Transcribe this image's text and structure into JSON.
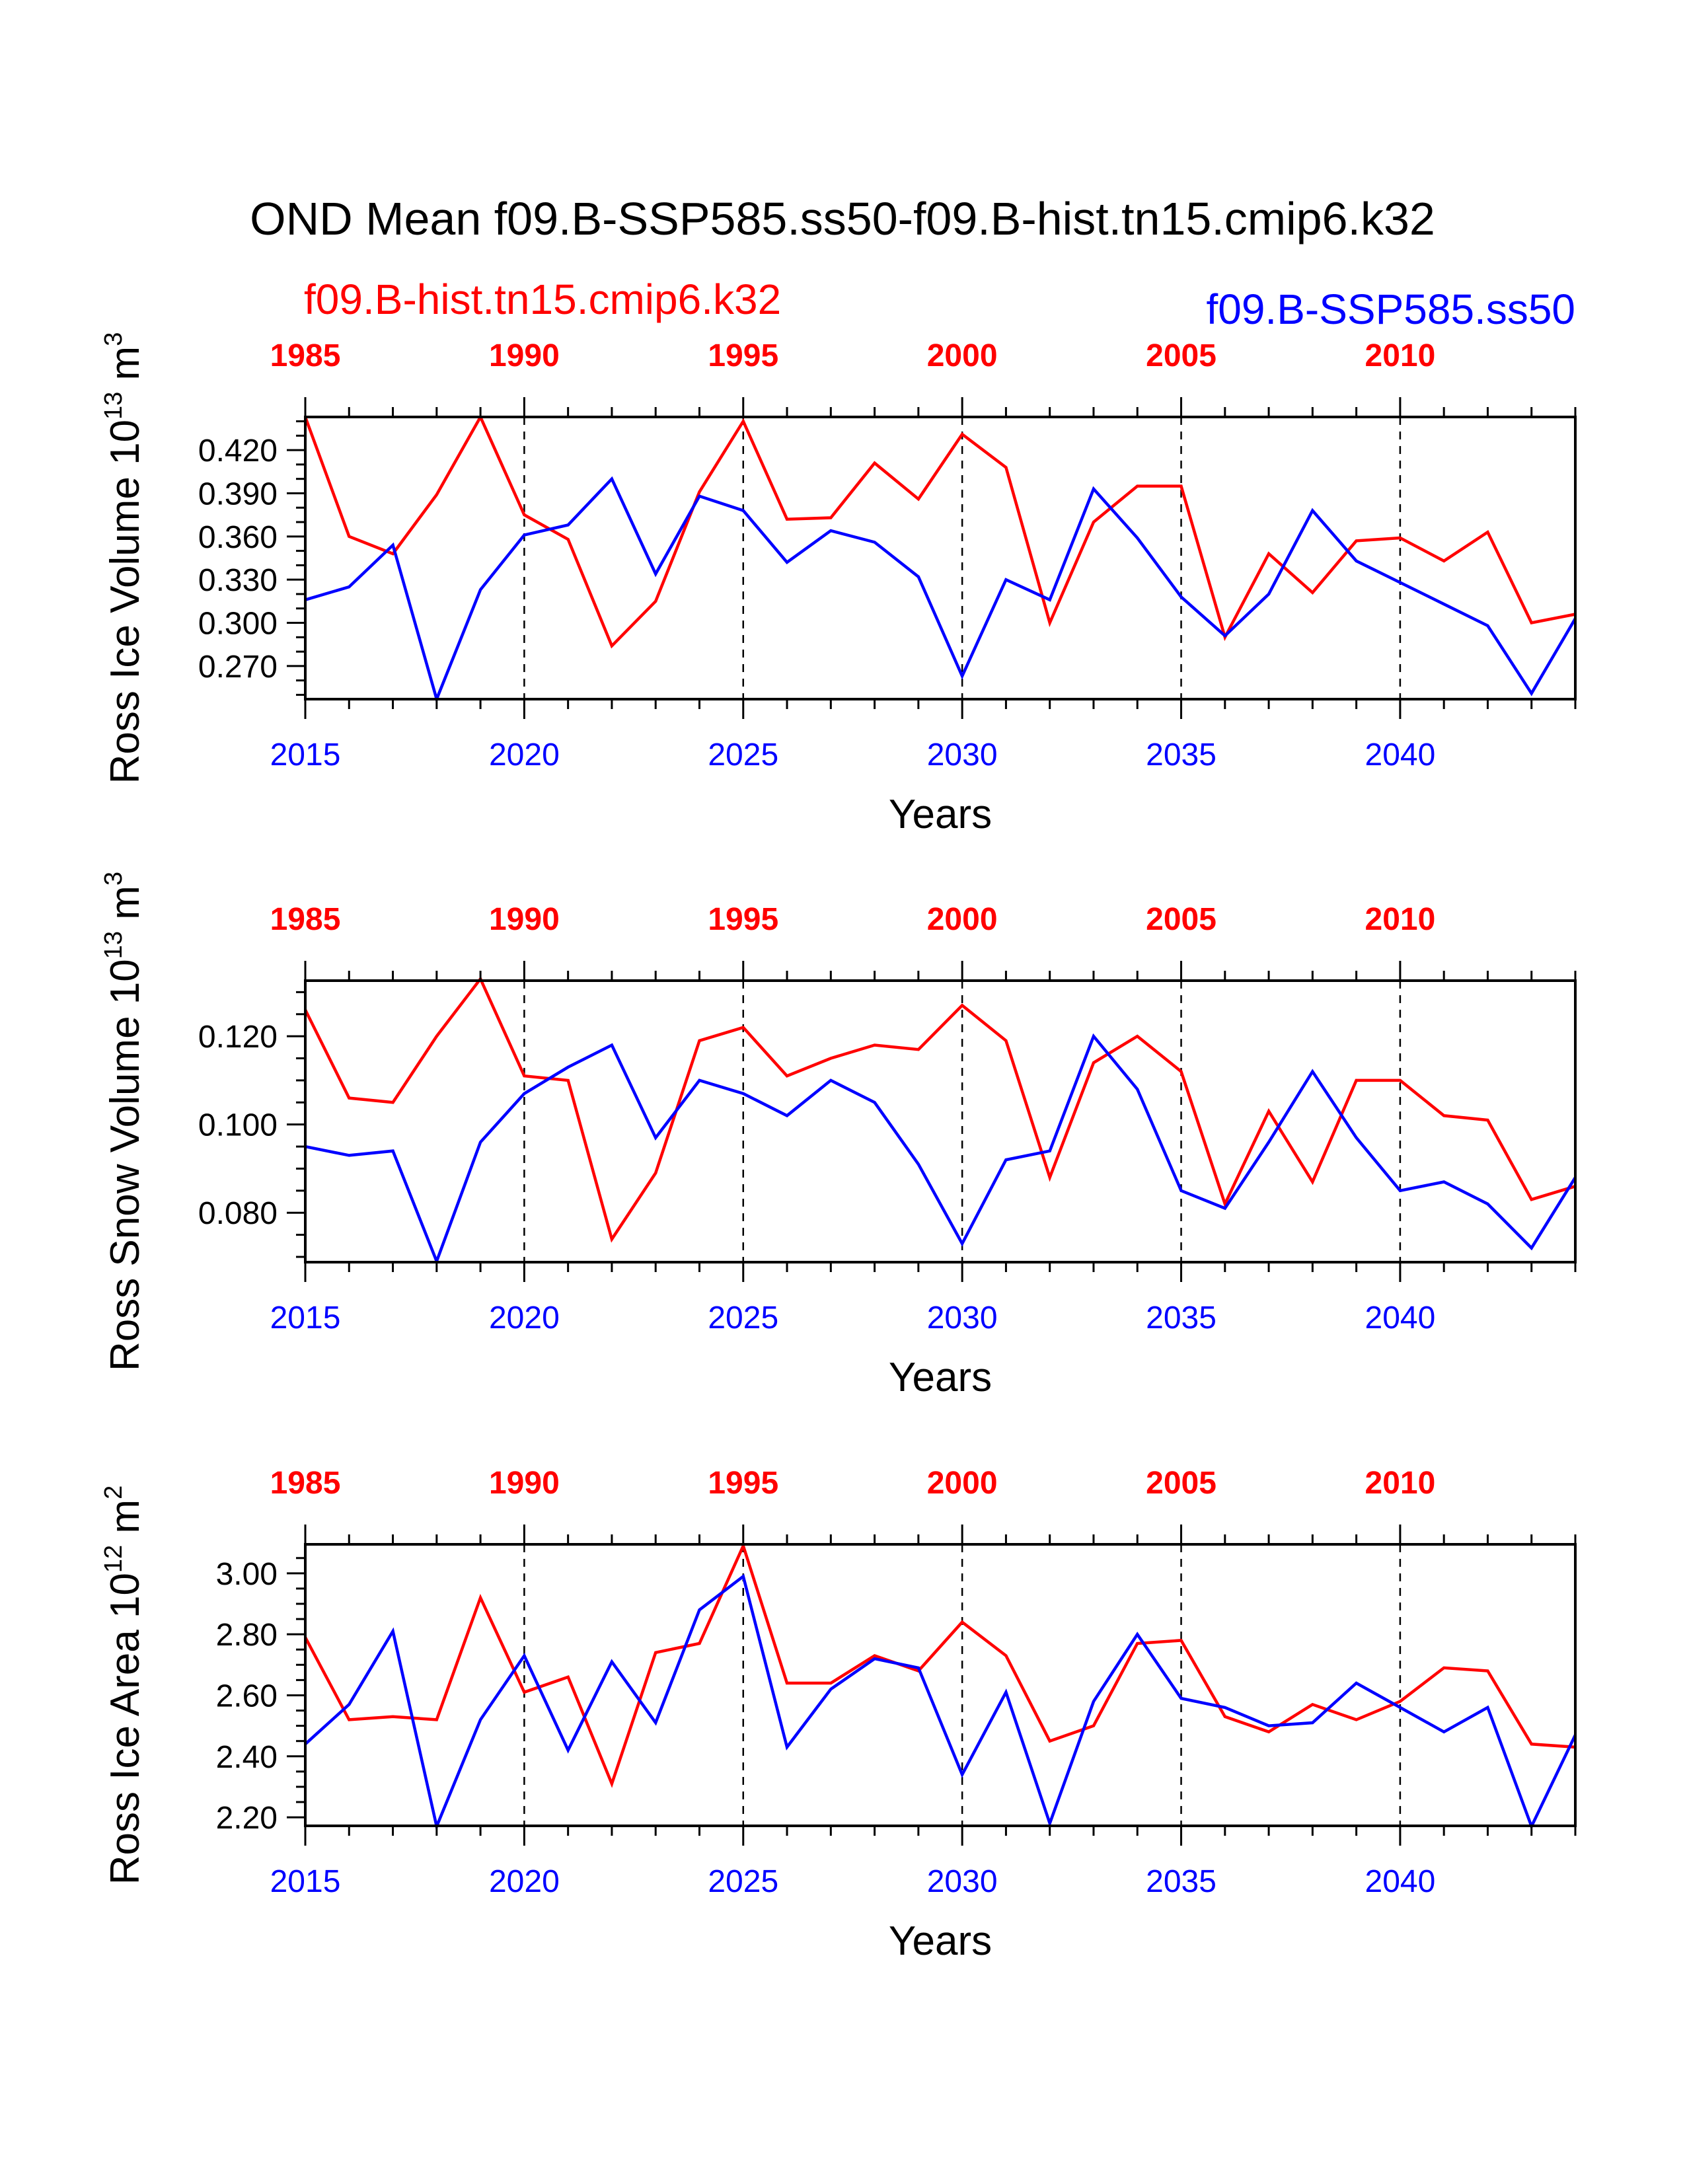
{
  "title": "OND Mean f09.B-SSP585.ss50-f09.B-hist.tn15.cmip6.k32",
  "legend": {
    "hist_label": "f09.B-hist.tn15.cmip6.k32",
    "ssp_label": "f09.B-SSP585.ss50"
  },
  "colors": {
    "hist": "#ff0000",
    "ssp": "#0000ff",
    "axis": "#000000"
  },
  "chart_data": [
    {
      "type": "line",
      "ylabel": "Ross Ice Volume 10",
      "ylabel_exp": "13",
      "ylabel_unit": " m",
      "ylabel_unit_exp": "3",
      "xlabel": "Years",
      "ylim": [
        0.247,
        0.443
      ],
      "yticks": [
        0.27,
        0.3,
        0.33,
        0.36,
        0.39,
        0.42
      ],
      "ytick_labels": [
        "0.270",
        "0.300",
        "0.330",
        "0.360",
        "0.390",
        "0.420"
      ],
      "yminor_step": 0.01,
      "xlim": [
        2015,
        2044
      ],
      "x_bottom_ticks": [
        2015,
        2020,
        2025,
        2030,
        2035,
        2040
      ],
      "x_bottom_labels": [
        "2015",
        "2020",
        "2025",
        "2030",
        "2035",
        "2040"
      ],
      "x_top_labels": [
        "1985",
        "1990",
        "1995",
        "2000",
        "2005",
        "2010"
      ],
      "x": [
        2015,
        2016,
        2017,
        2018,
        2019,
        2020,
        2021,
        2022,
        2023,
        2024,
        2025,
        2026,
        2027,
        2028,
        2029,
        2030,
        2031,
        2032,
        2033,
        2034,
        2035,
        2036,
        2037,
        2038,
        2039,
        2040,
        2041,
        2042,
        2043,
        2044
      ],
      "series": [
        {
          "name": "f09.B-hist.tn15.cmip6.k32",
          "color": "#ff0000",
          "values": [
            0.443,
            0.36,
            0.348,
            0.389,
            0.443,
            0.375,
            0.358,
            0.284,
            0.315,
            0.391,
            0.44,
            0.372,
            0.373,
            0.411,
            0.386,
            0.431,
            0.408,
            0.3,
            0.37,
            0.395,
            0.395,
            0.29,
            0.348,
            0.321,
            0.357,
            0.359,
            0.343,
            0.363,
            0.3,
            0.306
          ]
        },
        {
          "name": "f09.B-SSP585.ss50",
          "color": "#0000ff",
          "values": [
            0.316,
            0.325,
            0.354,
            0.247,
            0.323,
            0.361,
            0.368,
            0.4,
            0.334,
            0.388,
            0.378,
            0.342,
            0.364,
            0.356,
            0.332,
            0.263,
            0.33,
            0.316,
            0.393,
            0.359,
            0.318,
            0.291,
            0.32,
            0.378,
            0.343,
            0.328,
            0.313,
            0.298,
            0.251,
            0.303
          ]
        }
      ]
    },
    {
      "type": "line",
      "ylabel": "Ross Snow Volume 10",
      "ylabel_exp": "13",
      "ylabel_unit": " m",
      "ylabel_unit_exp": "3",
      "xlabel": "Years",
      "ylim": [
        0.0688,
        0.1326
      ],
      "yticks": [
        0.08,
        0.1,
        0.12
      ],
      "ytick_labels": [
        "0.080",
        "0.100",
        "0.120"
      ],
      "yminor_step": 0.005,
      "xlim": [
        2015,
        2044
      ],
      "x_bottom_ticks": [
        2015,
        2020,
        2025,
        2030,
        2035,
        2040
      ],
      "x_bottom_labels": [
        "2015",
        "2020",
        "2025",
        "2030",
        "2035",
        "2040"
      ],
      "x_top_labels": [
        "1985",
        "1990",
        "1995",
        "2000",
        "2005",
        "2010"
      ],
      "x": [
        2015,
        2016,
        2017,
        2018,
        2019,
        2020,
        2021,
        2022,
        2023,
        2024,
        2025,
        2026,
        2027,
        2028,
        2029,
        2030,
        2031,
        2032,
        2033,
        2034,
        2035,
        2036,
        2037,
        2038,
        2039,
        2040,
        2041,
        2042,
        2043,
        2044
      ],
      "series": [
        {
          "name": "f09.B-hist.tn15.cmip6.k32",
          "color": "#ff0000",
          "values": [
            0.126,
            0.106,
            0.105,
            0.12,
            0.133,
            0.111,
            0.11,
            0.074,
            0.089,
            0.119,
            0.122,
            0.111,
            0.115,
            0.118,
            0.117,
            0.127,
            0.119,
            0.088,
            0.114,
            0.12,
            0.112,
            0.082,
            0.103,
            0.087,
            0.11,
            0.11,
            0.102,
            0.101,
            0.083,
            0.086
          ]
        },
        {
          "name": "f09.B-SSP585.ss50",
          "color": "#0000ff",
          "values": [
            0.095,
            0.093,
            0.094,
            0.069,
            0.096,
            0.107,
            0.113,
            0.118,
            0.097,
            0.11,
            0.107,
            0.102,
            0.11,
            0.105,
            0.091,
            0.073,
            0.092,
            0.094,
            0.12,
            0.108,
            0.085,
            0.081,
            0.096,
            0.112,
            0.097,
            0.085,
            0.087,
            0.082,
            0.072,
            0.088
          ]
        }
      ]
    },
    {
      "type": "line",
      "ylabel": "Ross Ice Area 10",
      "ylabel_exp": "12",
      "ylabel_unit": " m",
      "ylabel_unit_exp": "2",
      "xlabel": "Years",
      "ylim": [
        2.172,
        3.095
      ],
      "yticks": [
        2.2,
        2.4,
        2.6,
        2.8,
        3.0
      ],
      "ytick_labels": [
        "2.20",
        "2.40",
        "2.60",
        "2.80",
        "3.00"
      ],
      "yminor_step": 0.05,
      "xlim": [
        2015,
        2044
      ],
      "x_bottom_ticks": [
        2015,
        2020,
        2025,
        2030,
        2035,
        2040
      ],
      "x_bottom_labels": [
        "2015",
        "2020",
        "2025",
        "2030",
        "2035",
        "2040"
      ],
      "x_top_labels": [
        "1985",
        "1990",
        "1995",
        "2000",
        "2005",
        "2010"
      ],
      "x": [
        2015,
        2016,
        2017,
        2018,
        2019,
        2020,
        2021,
        2022,
        2023,
        2024,
        2025,
        2026,
        2027,
        2028,
        2029,
        2030,
        2031,
        2032,
        2033,
        2034,
        2035,
        2036,
        2037,
        2038,
        2039,
        2040,
        2041,
        2042,
        2043,
        2044
      ],
      "series": [
        {
          "name": "f09.B-hist.tn15.cmip6.k32",
          "color": "#ff0000",
          "values": [
            2.79,
            2.52,
            2.53,
            2.52,
            2.92,
            2.61,
            2.66,
            2.31,
            2.74,
            2.77,
            3.09,
            2.64,
            2.64,
            2.73,
            2.68,
            2.84,
            2.73,
            2.45,
            2.5,
            2.77,
            2.78,
            2.53,
            2.48,
            2.57,
            2.52,
            2.58,
            2.69,
            2.68,
            2.44,
            2.43
          ]
        },
        {
          "name": "f09.B-SSP585.ss50",
          "color": "#0000ff",
          "values": [
            2.44,
            2.57,
            2.81,
            2.17,
            2.52,
            2.73,
            2.42,
            2.71,
            2.51,
            2.88,
            2.99,
            2.43,
            2.62,
            2.72,
            2.69,
            2.34,
            2.61,
            2.18,
            2.58,
            2.8,
            2.59,
            2.56,
            2.5,
            2.51,
            2.64,
            2.56,
            2.48,
            2.56,
            2.17,
            2.47
          ]
        }
      ]
    }
  ]
}
